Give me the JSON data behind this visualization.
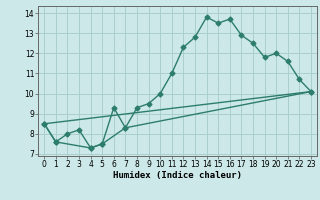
{
  "xlabel": "Humidex (Indice chaleur)",
  "bg_color": "#cce8e8",
  "grid_color": "#aacfcf",
  "line_color": "#2d7d6e",
  "line1_x": [
    0,
    1,
    2,
    3,
    4,
    5,
    6,
    7,
    8,
    9,
    10,
    11,
    12,
    13,
    14,
    15,
    16,
    17,
    18,
    19,
    20,
    21,
    22,
    23
  ],
  "line1_y": [
    8.5,
    7.6,
    8.0,
    8.2,
    7.3,
    7.5,
    9.3,
    8.3,
    9.3,
    9.5,
    10.0,
    11.0,
    12.3,
    12.8,
    13.8,
    13.5,
    13.7,
    12.9,
    12.5,
    11.8,
    12.0,
    11.6,
    10.7,
    10.1
  ],
  "line2_x": [
    0,
    1,
    4,
    5,
    7,
    23
  ],
  "line2_y": [
    8.5,
    7.6,
    7.3,
    7.5,
    8.3,
    10.1
  ],
  "line3_x": [
    0,
    23
  ],
  "line3_y": [
    8.5,
    10.1
  ],
  "xlim": [
    -0.5,
    23.5
  ],
  "ylim": [
    6.9,
    14.35
  ],
  "yticks": [
    7,
    8,
    9,
    10,
    11,
    12,
    13,
    14
  ],
  "xticks": [
    0,
    1,
    2,
    3,
    4,
    5,
    6,
    7,
    8,
    9,
    10,
    11,
    12,
    13,
    14,
    15,
    16,
    17,
    18,
    19,
    20,
    21,
    22,
    23
  ],
  "tick_fontsize": 5.5,
  "xlabel_fontsize": 6.5
}
